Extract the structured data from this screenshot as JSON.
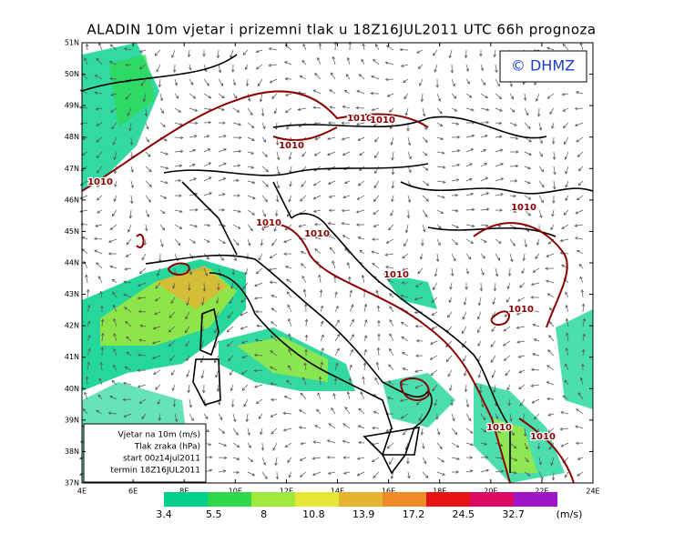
{
  "title": "ALADIN  10m  vjetar  i  prizemni  tlak  u  18Z16JUL2011  UTC  66h  prognoza",
  "logo": "© DHMZ",
  "x_tick_labels": [
    "4E",
    "6E",
    "8E",
    "10E",
    "12E",
    "14E",
    "16E",
    "18E",
    "20E",
    "22E",
    "24E"
  ],
  "y_tick_labels": [
    "37N",
    "38N",
    "39N",
    "40N",
    "41N",
    "42N",
    "43N",
    "44N",
    "45N",
    "46N",
    "47N",
    "48N",
    "49N",
    "50N",
    "51N"
  ],
  "info_box": [
    "Vjetar na 10m (m/s)",
    "Tlak zraka (hPa)",
    "start 00z14jul2011",
    "termin 18Z16JUL2011"
  ],
  "isobar_labels": [
    1010,
    1010,
    1010,
    1010,
    1010,
    1010,
    1010,
    1010,
    1010,
    1010,
    1010
  ],
  "colorbar": {
    "levels": [
      3.4,
      5.5,
      8,
      10.8,
      13.9,
      17.2,
      24.5,
      32.7
    ],
    "colors": [
      "#00d08c",
      "#2ed84a",
      "#a0e83c",
      "#e6e636",
      "#e6b432",
      "#f08c28",
      "#e61414",
      "#dc0a64",
      "#a014c8"
    ],
    "unit": "(m/s)"
  }
}
